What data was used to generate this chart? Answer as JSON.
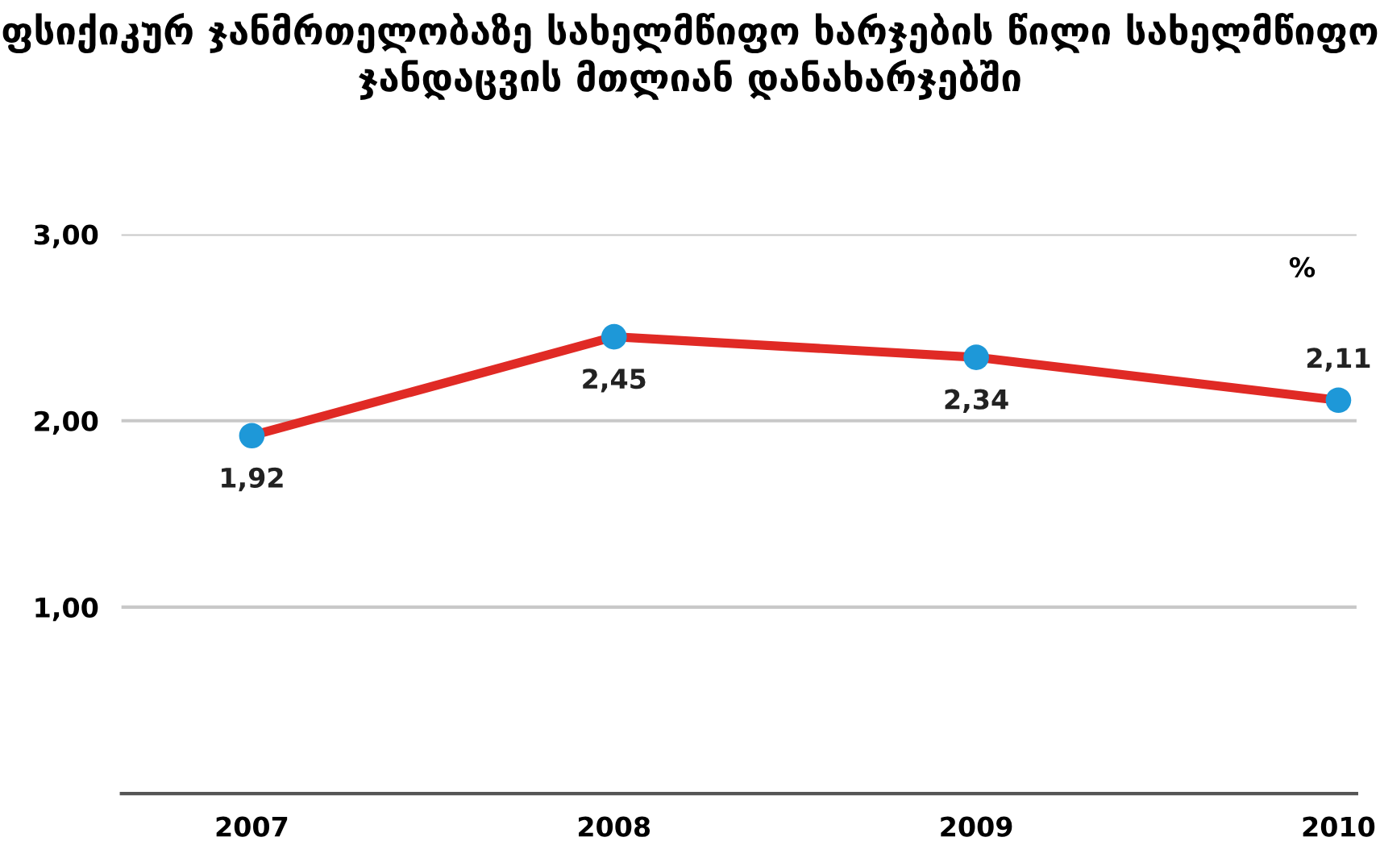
{
  "chart_data": {
    "type": "line",
    "title": "ფსიქიკურ ჯანმრთელობაზე სახელმწიფო ხარჯების წილი სახელმწიფო ჯანდაცვის მთლიან დანახარჯებში",
    "categories": [
      "2007",
      "2008",
      "2009",
      "2010"
    ],
    "series": [
      {
        "color": "#e02a25",
        "colors": [
          "#1e98d8",
          "#1e98d8",
          "#1e98d8",
          "#1e98d8"
        ],
        "values": [
          1.92,
          2.45,
          2.34,
          2.11
        ],
        "value_labels": [
          "1,92",
          "2,45",
          "2,34",
          "2,11"
        ]
      }
    ],
    "marker": "circle",
    "ylim": [
      0,
      3
    ],
    "yticks": [
      {
        "value": 0,
        "label": null
      },
      {
        "value": 1,
        "label": "1,00"
      },
      {
        "value": 2,
        "label": "2,00"
      },
      {
        "value": 3,
        "label": "3,00"
      }
    ],
    "grid": "y",
    "annotations": [
      "%"
    ]
  }
}
